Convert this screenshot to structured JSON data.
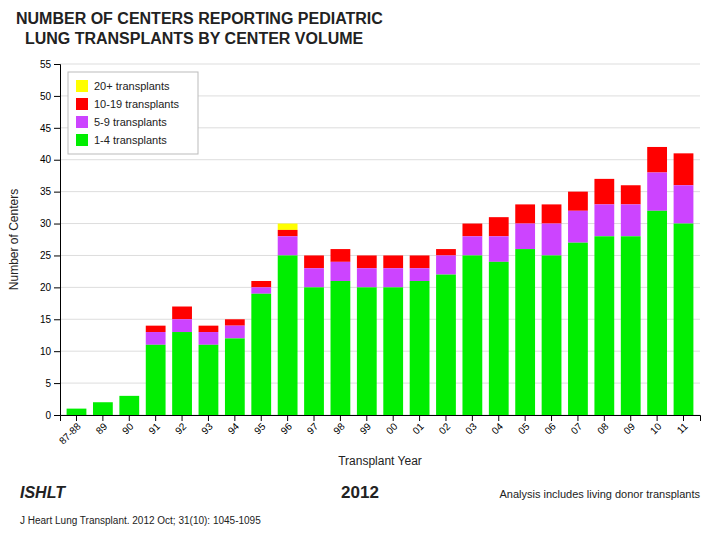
{
  "chart_data": {
    "type": "bar",
    "stacked": true,
    "title": "NUMBER OF CENTERS REPORTING PEDIATRIC\n  LUNG TRANSPLANTS BY CENTER VOLUME",
    "x_label": "Transplant Year",
    "y_label": "Number of Centers",
    "categories": [
      "87-88",
      "89",
      "90",
      "91",
      "92",
      "93",
      "94",
      "95",
      "96",
      "97",
      "98",
      "99",
      "00",
      "01",
      "02",
      "03",
      "04",
      "05",
      "06",
      "07",
      "08",
      "09",
      "10",
      "11"
    ],
    "series": [
      {
        "name": "20+ transplants",
        "color": "#FFFF00",
        "values": [
          0,
          0,
          0,
          0,
          0,
          0,
          0,
          0,
          1,
          0,
          0,
          0,
          0,
          0,
          0,
          0,
          0,
          0,
          0,
          0,
          0,
          0,
          0,
          0
        ]
      },
      {
        "name": "10-19 transplants",
        "color": "#FF0000",
        "values": [
          0,
          0,
          0,
          1,
          2,
          1,
          1,
          1,
          1,
          2,
          2,
          2,
          2,
          2,
          1,
          2,
          3,
          3,
          3,
          3,
          4,
          3,
          4,
          5
        ]
      },
      {
        "name": "5-9 transplants",
        "color": "#CC44FF",
        "values": [
          0,
          0,
          0,
          2,
          2,
          2,
          2,
          1,
          3,
          3,
          3,
          3,
          3,
          2,
          3,
          3,
          4,
          4,
          5,
          5,
          5,
          5,
          6,
          6
        ]
      },
      {
        "name": "1-4 transplants",
        "color": "#00EE00",
        "values": [
          1,
          2,
          3,
          11,
          13,
          11,
          12,
          19,
          25,
          20,
          21,
          20,
          20,
          21,
          22,
          25,
          24,
          26,
          25,
          27,
          28,
          28,
          32,
          30
        ]
      }
    ],
    "ylim": [
      0,
      55
    ],
    "yticks": [
      0,
      5,
      10,
      15,
      20,
      25,
      30,
      35,
      40,
      45,
      50,
      55
    ],
    "grid": true,
    "legend": "upper left",
    "annotations": [
      "ISHLT",
      "J Heart Lung Transplant.  2012 Oct; 31(10): 1045-1095",
      "2012",
      "Analysis includes living donor transplants"
    ]
  }
}
